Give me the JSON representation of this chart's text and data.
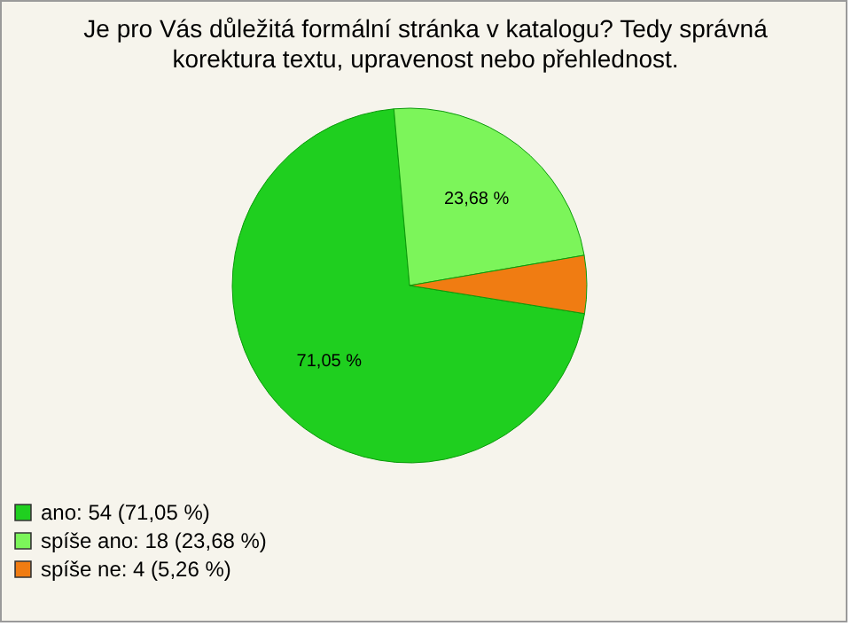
{
  "chart_data": {
    "type": "pie",
    "title": [
      "Je pro Vás důležitá formální stránka v katalogu? Tedy správná",
      "korektura textu, upravenost nebo přehlednost."
    ],
    "categories": [
      "ano: 54 (71,05 %)",
      "spíše ano: 18 (23,68 %)",
      "spíše ne: 4 (5,26 %)"
    ],
    "values": [
      71.05,
      23.68,
      5.26
    ],
    "colors": [
      "#1fcf1f",
      "#7cf55a",
      "#f07c12"
    ],
    "value_labels": [
      "71,05 %",
      "23,68 %",
      null
    ],
    "legend": "bottom left"
  }
}
